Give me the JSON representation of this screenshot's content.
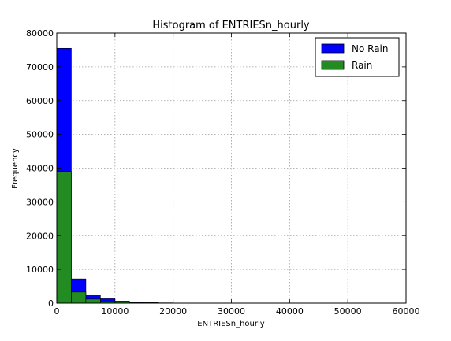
{
  "chart_data": {
    "type": "bar",
    "title": "Histogram of ENTRIESn_hourly",
    "xlabel": "ENTRIESn_hourly",
    "ylabel": "Frequency",
    "xlim": [
      0,
      60000
    ],
    "ylim": [
      0,
      80000
    ],
    "x_ticks": [
      0,
      10000,
      20000,
      30000,
      40000,
      50000,
      60000
    ],
    "y_ticks": [
      0,
      10000,
      20000,
      30000,
      40000,
      50000,
      60000,
      70000,
      80000
    ],
    "grid": true,
    "legend_position": "top-right",
    "bin_width": 2500,
    "series": [
      {
        "name": "No Rain",
        "color": "#0000ff",
        "bin_starts": [
          0,
          2500,
          5000,
          7500,
          10000,
          12500,
          15000,
          17500,
          20000
        ],
        "values": [
          75500,
          7200,
          2500,
          1300,
          600,
          300,
          150,
          80,
          40
        ]
      },
      {
        "name": "Rain",
        "color": "#228b22",
        "bin_starts": [
          0,
          2500,
          5000,
          7500,
          10000,
          12500,
          15000,
          17500,
          20000
        ],
        "values": [
          39000,
          3300,
          1200,
          600,
          300,
          150,
          70,
          40,
          20
        ]
      }
    ]
  }
}
